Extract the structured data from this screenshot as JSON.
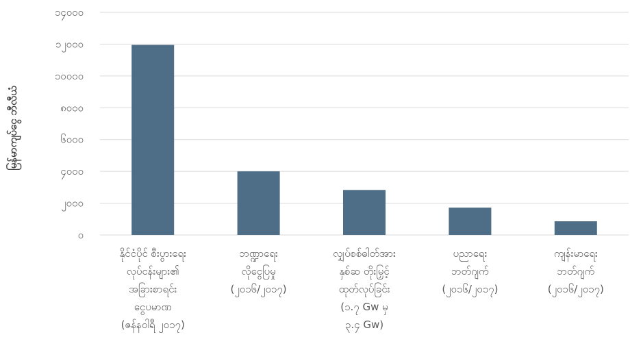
{
  "chart_data": {
    "type": "bar",
    "ylabel": "မြန်မာကျပ်ငွေ ဘီလီယံ",
    "xlabel": "",
    "ylim": [
      0,
      14000
    ],
    "yticks": [
      0,
      2000,
      4000,
      6000,
      8000,
      10000,
      12000,
      14000
    ],
    "ytick_labels": [
      "၀",
      "၂၀၀၀",
      "၄၀၀၀",
      "၆၀၀၀",
      "၈၀၀၀",
      "၁၀၀၀၀",
      "၁၂၀၀၀",
      "၁၄၀၀၀"
    ],
    "grid": true,
    "categories": [
      [
        "နိုင်ငံပိုင် စီးပွားရေး",
        "လုပ်ငန်းများ၏",
        "အခြားစာရင်း",
        "ငွေပမာဏ",
        "(ဇန်နဝါရီ ၂၀၁၇)"
      ],
      [
        "ဘဏ္ဍာရေး",
        "လိုငွေပြမှု",
        "(၂၀၁၆/၂၀၁၇)"
      ],
      [
        "လျှပ်စစ်ဓါတ်အား",
        "နှစ်ဆ တိုးမြှင့်",
        "ထုတ်လုပ်ခြင်း",
        "(၁.၇ Gw မှ",
        "၃.၄ Gw)"
      ],
      [
        "ပညာရေး",
        "ဘတ်ဂျက်",
        "(၂၀၁၆/၂၀၁၇)"
      ],
      [
        "ကျန်းမာရေး",
        "ဘတ်ဂျက်",
        "(၂၀၁၆/၂၀၁၇)"
      ]
    ],
    "values": [
      11950,
      4000,
      2830,
      1720,
      860
    ],
    "color": "#4e6d86"
  }
}
